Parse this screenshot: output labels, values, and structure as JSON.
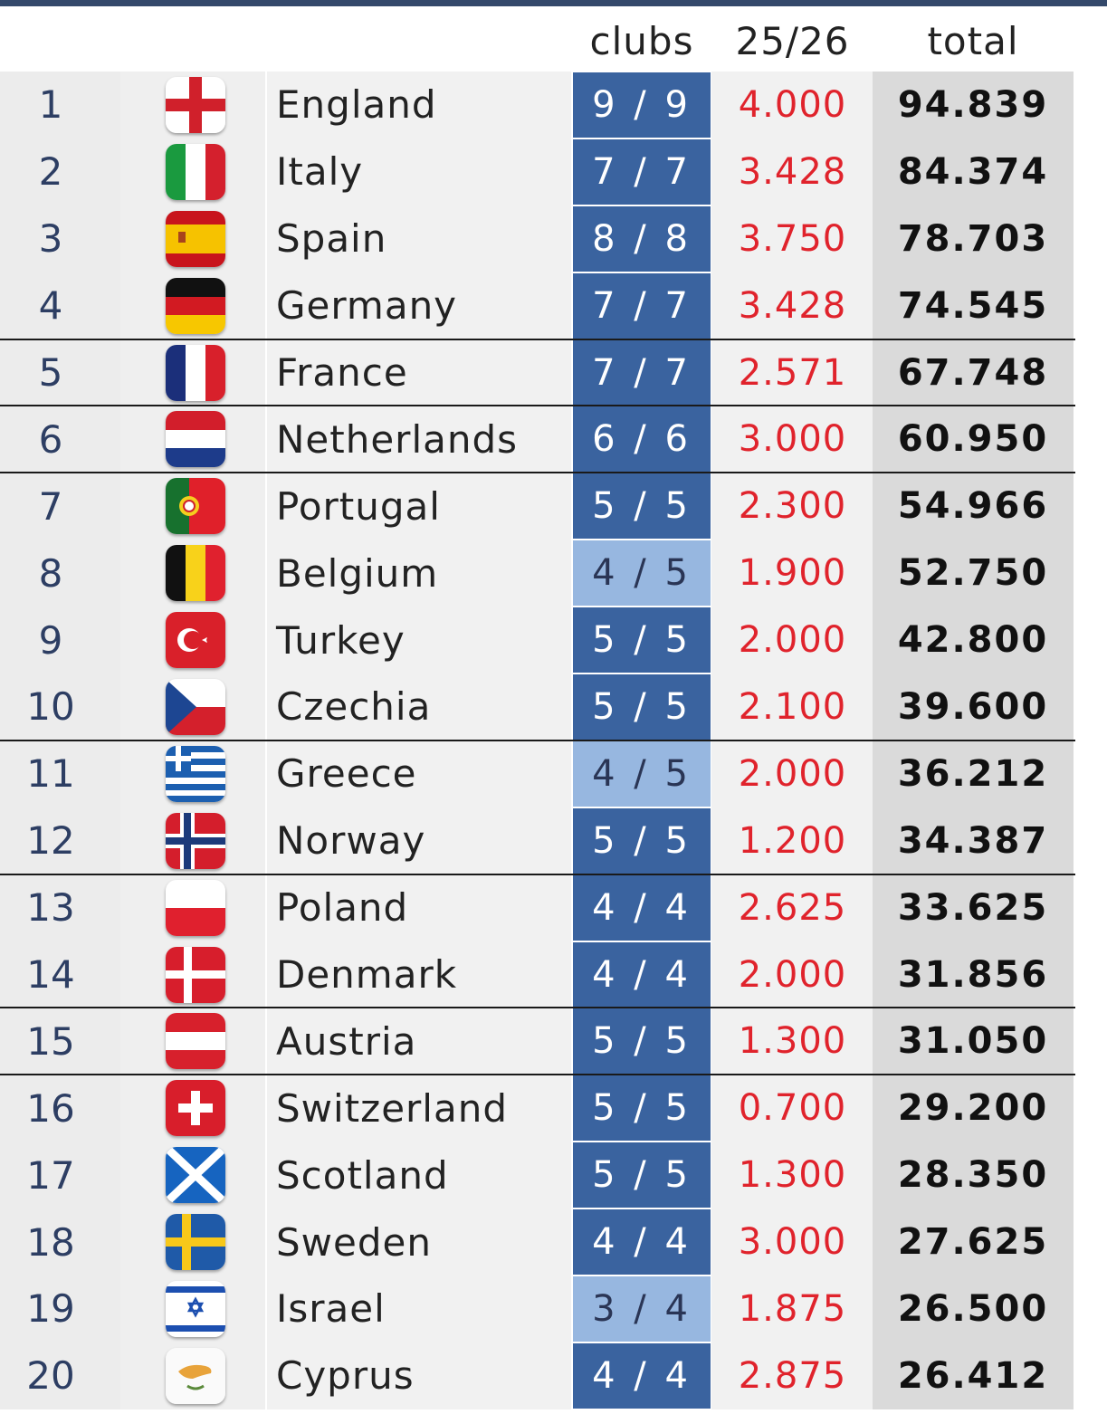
{
  "header": {
    "clubs": "clubs",
    "season": "25/26",
    "total": "total"
  },
  "rows": [
    {
      "rank": "1",
      "country": "England",
      "flag_icon": "england-flag-icon",
      "clubs": "9 / 9",
      "clubs_complete": true,
      "season": "4.000",
      "total": "94.839",
      "separator": false
    },
    {
      "rank": "2",
      "country": "Italy",
      "flag_icon": "italy-flag-icon",
      "clubs": "7 / 7",
      "clubs_complete": true,
      "season": "3.428",
      "total": "84.374",
      "separator": false
    },
    {
      "rank": "3",
      "country": "Spain",
      "flag_icon": "spain-flag-icon",
      "clubs": "8 / 8",
      "clubs_complete": true,
      "season": "3.750",
      "total": "78.703",
      "separator": false
    },
    {
      "rank": "4",
      "country": "Germany",
      "flag_icon": "germany-flag-icon",
      "clubs": "7 / 7",
      "clubs_complete": true,
      "season": "3.428",
      "total": "74.545",
      "separator": true
    },
    {
      "rank": "5",
      "country": "France",
      "flag_icon": "france-flag-icon",
      "clubs": "7 / 7",
      "clubs_complete": true,
      "season": "2.571",
      "total": "67.748",
      "separator": true
    },
    {
      "rank": "6",
      "country": "Netherlands",
      "flag_icon": "netherlands-flag-icon",
      "clubs": "6 / 6",
      "clubs_complete": true,
      "season": "3.000",
      "total": "60.950",
      "separator": true
    },
    {
      "rank": "7",
      "country": "Portugal",
      "flag_icon": "portugal-flag-icon",
      "clubs": "5 / 5",
      "clubs_complete": true,
      "season": "2.300",
      "total": "54.966",
      "separator": false
    },
    {
      "rank": "8",
      "country": "Belgium",
      "flag_icon": "belgium-flag-icon",
      "clubs": "4 / 5",
      "clubs_complete": false,
      "season": "1.900",
      "total": "52.750",
      "separator": false
    },
    {
      "rank": "9",
      "country": "Turkey",
      "flag_icon": "turkey-flag-icon",
      "clubs": "5 / 5",
      "clubs_complete": true,
      "season": "2.000",
      "total": "42.800",
      "separator": false
    },
    {
      "rank": "10",
      "country": "Czechia",
      "flag_icon": "czechia-flag-icon",
      "clubs": "5 / 5",
      "clubs_complete": true,
      "season": "2.100",
      "total": "39.600",
      "separator": true
    },
    {
      "rank": "11",
      "country": "Greece",
      "flag_icon": "greece-flag-icon",
      "clubs": "4 / 5",
      "clubs_complete": false,
      "season": "2.000",
      "total": "36.212",
      "separator": false
    },
    {
      "rank": "12",
      "country": "Norway",
      "flag_icon": "norway-flag-icon",
      "clubs": "5 / 5",
      "clubs_complete": true,
      "season": "1.200",
      "total": "34.387",
      "separator": true
    },
    {
      "rank": "13",
      "country": "Poland",
      "flag_icon": "poland-flag-icon",
      "clubs": "4 / 4",
      "clubs_complete": true,
      "season": "2.625",
      "total": "33.625",
      "separator": false
    },
    {
      "rank": "14",
      "country": "Denmark",
      "flag_icon": "denmark-flag-icon",
      "clubs": "4 / 4",
      "clubs_complete": true,
      "season": "2.000",
      "total": "31.856",
      "separator": true
    },
    {
      "rank": "15",
      "country": "Austria",
      "flag_icon": "austria-flag-icon",
      "clubs": "5 / 5",
      "clubs_complete": true,
      "season": "1.300",
      "total": "31.050",
      "separator": true
    },
    {
      "rank": "16",
      "country": "Switzerland",
      "flag_icon": "switzerland-flag-icon",
      "clubs": "5 / 5",
      "clubs_complete": true,
      "season": "0.700",
      "total": "29.200",
      "separator": false
    },
    {
      "rank": "17",
      "country": "Scotland",
      "flag_icon": "scotland-flag-icon",
      "clubs": "5 / 5",
      "clubs_complete": true,
      "season": "1.300",
      "total": "28.350",
      "separator": false
    },
    {
      "rank": "18",
      "country": "Sweden",
      "flag_icon": "sweden-flag-icon",
      "clubs": "4 / 4",
      "clubs_complete": true,
      "season": "3.000",
      "total": "27.625",
      "separator": false
    },
    {
      "rank": "19",
      "country": "Israel",
      "flag_icon": "israel-flag-icon",
      "clubs": "3 / 4",
      "clubs_complete": false,
      "season": "1.875",
      "total": "26.500",
      "separator": false
    },
    {
      "rank": "20",
      "country": "Cyprus",
      "flag_icon": "cyprus-flag-icon",
      "clubs": "4 / 4",
      "clubs_complete": true,
      "season": "2.875",
      "total": "26.412",
      "separator": false
    }
  ],
  "colors": {
    "clubs_complete": "#3a639f",
    "clubs_incomplete": "#97b7e0",
    "season_text": "#e0232c",
    "rank_text": "#2d3e63",
    "top_border": "#34496b"
  }
}
